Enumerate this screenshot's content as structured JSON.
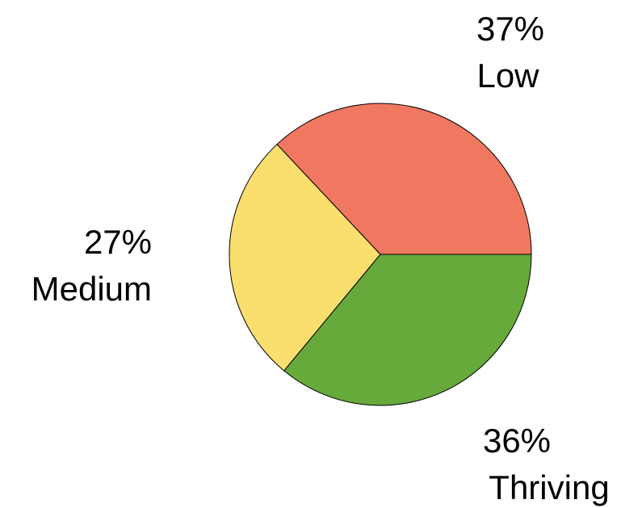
{
  "chart_data": {
    "type": "pie",
    "slices": [
      {
        "category": "Low",
        "value": 37,
        "percent_label": "37%",
        "color": "#F07860"
      },
      {
        "category": "Thriving",
        "value": 36,
        "percent_label": "36%",
        "color": "#66AA3C"
      },
      {
        "category": "Medium",
        "value": 27,
        "percent_label": "27%",
        "color": "#FADE6E"
      }
    ],
    "start_angle_deg": 0,
    "direction": "counterclockwise",
    "legend": "none",
    "labels_outside": true
  }
}
